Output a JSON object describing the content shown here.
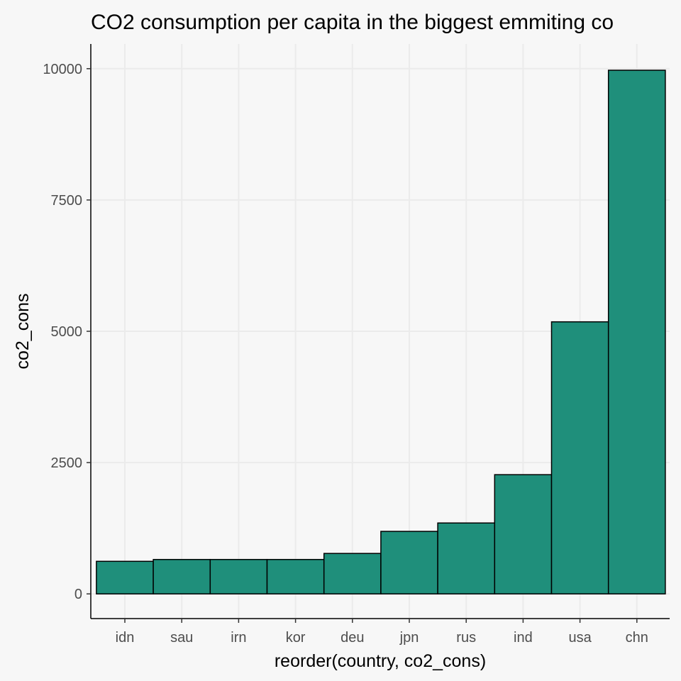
{
  "chart_data": {
    "type": "bar",
    "title": "CO2 consumption per capita in the biggest emmiting co",
    "xlabel": "reorder(country, co2_cons)",
    "ylabel": "co2_cons",
    "categories": [
      "idn",
      "sau",
      "irn",
      "kor",
      "deu",
      "jpn",
      "rus",
      "ind",
      "usa",
      "chn"
    ],
    "values": [
      620,
      655,
      655,
      655,
      770,
      1190,
      1350,
      2270,
      5180,
      9970
    ],
    "ylim": [
      -470,
      10470
    ],
    "yticks": [
      0,
      2500,
      5000,
      7500,
      10000
    ],
    "grid": true,
    "bar_color": "#1f8f7b"
  }
}
